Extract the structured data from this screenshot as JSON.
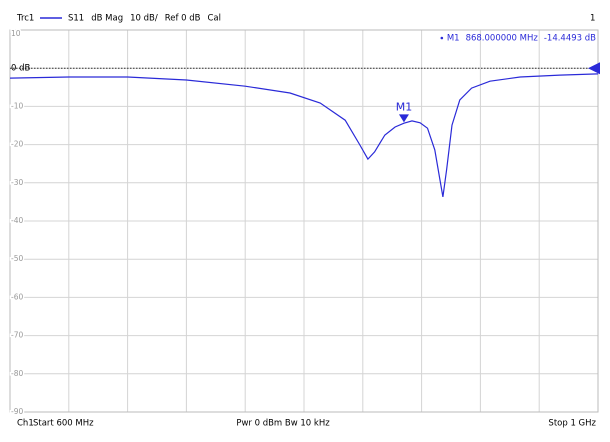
{
  "chart_data": {
    "type": "line",
    "header": {
      "trace": "Trc1",
      "format": "dB Mag",
      "scale": "10 dB/",
      "reference": {
        "value": 0,
        "label": "Ref 0 dB"
      },
      "status": "Cal",
      "window": "1"
    },
    "footer": {
      "channel": "Ch1",
      "start": "Start 600 MHz",
      "settings": "Pwr 0 dBm  Bw 10 kHz",
      "stop": "Stop 1 GHz"
    },
    "x": [
      600,
      640,
      680,
      720,
      760,
      790.5,
      811,
      828,
      838,
      843.5,
      848,
      855,
      862,
      868,
      873.5,
      879,
      884,
      889,
      892.5,
      894.5,
      897,
      900.7,
      906,
      914,
      926.5,
      947,
      974,
      1000
    ],
    "series": [
      {
        "name": "S11",
        "color": "#2a2ad8",
        "values": [
          -2.6,
          -2.3,
          -2.3,
          -3.1,
          -4.7,
          -6.5,
          -9.1,
          -13.6,
          -20.1,
          -23.8,
          -21.9,
          -17.5,
          -15.4,
          -14.4,
          -13.8,
          -14.3,
          -15.7,
          -21.4,
          -29.3,
          -33.7,
          -26.6,
          -14.9,
          -8.3,
          -5.2,
          -3.4,
          -2.3,
          -1.8,
          -1.5
        ]
      }
    ],
    "markers": [
      {
        "name": "M1",
        "x": 868,
        "y": -14.4493,
        "x_label": "868.000000 MHz",
        "y_label": "-14.4493 dB"
      }
    ],
    "xlim": [
      600,
      1000
    ],
    "xticks": [
      600,
      640,
      680,
      720,
      760,
      800,
      840,
      880,
      920,
      960,
      1000
    ],
    "ylim": [
      -90,
      10
    ],
    "yticks": [
      -90,
      -80,
      -70,
      -60,
      -50,
      -40,
      -30,
      -20,
      -10,
      {
        "value": 0,
        "label": "0 dB"
      },
      10
    ],
    "grid": true
  }
}
